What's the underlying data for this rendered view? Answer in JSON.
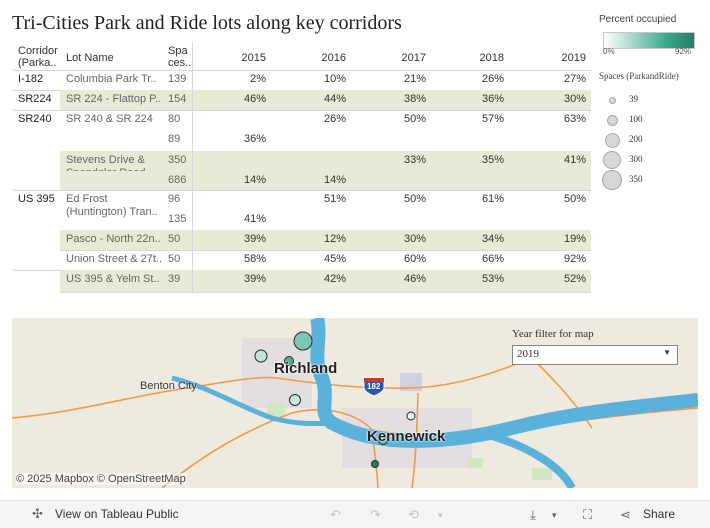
{
  "title": "Tri-Cities Park and Ride lots along key corridors",
  "table": {
    "headers": {
      "corridor_1": "Corridor",
      "corridor_2": "(Parka..",
      "lot": "Lot Name",
      "spaces_1": "Spa",
      "spaces_2": "ces..",
      "years": [
        "2015",
        "2016",
        "2017",
        "2018",
        "2019"
      ]
    },
    "rows": [
      {
        "corridor": "I-182",
        "lot_1": "Columbia Park Tr..",
        "lot_2": "",
        "spaces": "139",
        "values": [
          "2%",
          "10%",
          "21%",
          "26%",
          "27%"
        ]
      },
      {
        "corridor": "SR224",
        "lot_1": "SR 224 - Flattop P..",
        "lot_2": "",
        "spaces": "154",
        "values": [
          "46%",
          "44%",
          "38%",
          "36%",
          "30%"
        ]
      },
      {
        "corridor": "SR240",
        "lot_1": "SR 240 & SR 224",
        "lot_2": "",
        "spaces": "80",
        "values": [
          "",
          "26%",
          "50%",
          "57%",
          "63%"
        ]
      },
      {
        "corridor": "",
        "lot_1": "",
        "lot_2": "",
        "spaces": "89",
        "values": [
          "36%",
          "",
          "",
          "",
          ""
        ]
      },
      {
        "corridor": "",
        "lot_1": "Stevens Drive &",
        "lot_2": "Spendgler Road - ..",
        "spaces": "350",
        "values": [
          "",
          "",
          "33%",
          "35%",
          "41%"
        ]
      },
      {
        "corridor": "",
        "lot_1": "",
        "lot_2": "",
        "spaces": "686",
        "values": [
          "14%",
          "14%",
          "",
          "",
          ""
        ]
      },
      {
        "corridor": "US 395",
        "lot_1": "Ed Frost",
        "lot_2": "(Huntington) Tran..",
        "spaces": "96",
        "values": [
          "",
          "51%",
          "50%",
          "61%",
          "50%"
        ]
      },
      {
        "corridor": "",
        "lot_1": "",
        "lot_2": "",
        "spaces": "135",
        "values": [
          "41%",
          "",
          "",
          "",
          ""
        ]
      },
      {
        "corridor": "",
        "lot_1": "Pasco - North 22n..",
        "lot_2": "",
        "spaces": "50",
        "values": [
          "39%",
          "12%",
          "30%",
          "34%",
          "19%"
        ]
      },
      {
        "corridor": "",
        "lot_1": "Union Street & 27t..",
        "lot_2": "",
        "spaces": "50",
        "values": [
          "58%",
          "45%",
          "60%",
          "66%",
          "92%"
        ]
      },
      {
        "corridor": "",
        "lot_1": "US 395 & Yelm St..",
        "lot_2": "",
        "spaces": "39",
        "values": [
          "39%",
          "42%",
          "46%",
          "53%",
          "52%"
        ]
      }
    ]
  },
  "legend": {
    "color_title": "Percent occupied",
    "color_min": "0%",
    "color_max": "92%",
    "size_title": "Spaces (ParkandRide)",
    "sizes": [
      "39",
      "100",
      "200",
      "300",
      "350"
    ],
    "color_low": "#ffffff",
    "color_high": "#2a7a66"
  },
  "map": {
    "cities": {
      "richland": "Richland",
      "kennewick": "Kennewick",
      "benton_city": "Benton City"
    },
    "shield": "182",
    "attribution": "© 2025 Mapbox  © OpenStreetMap",
    "filter_title": "Year filter for map",
    "filter_value": "2019",
    "water_color": "#5ab1da",
    "road_color": "#f39a4a"
  },
  "footer": {
    "view_label": "View on Tableau Public",
    "share_label": "Share"
  }
}
